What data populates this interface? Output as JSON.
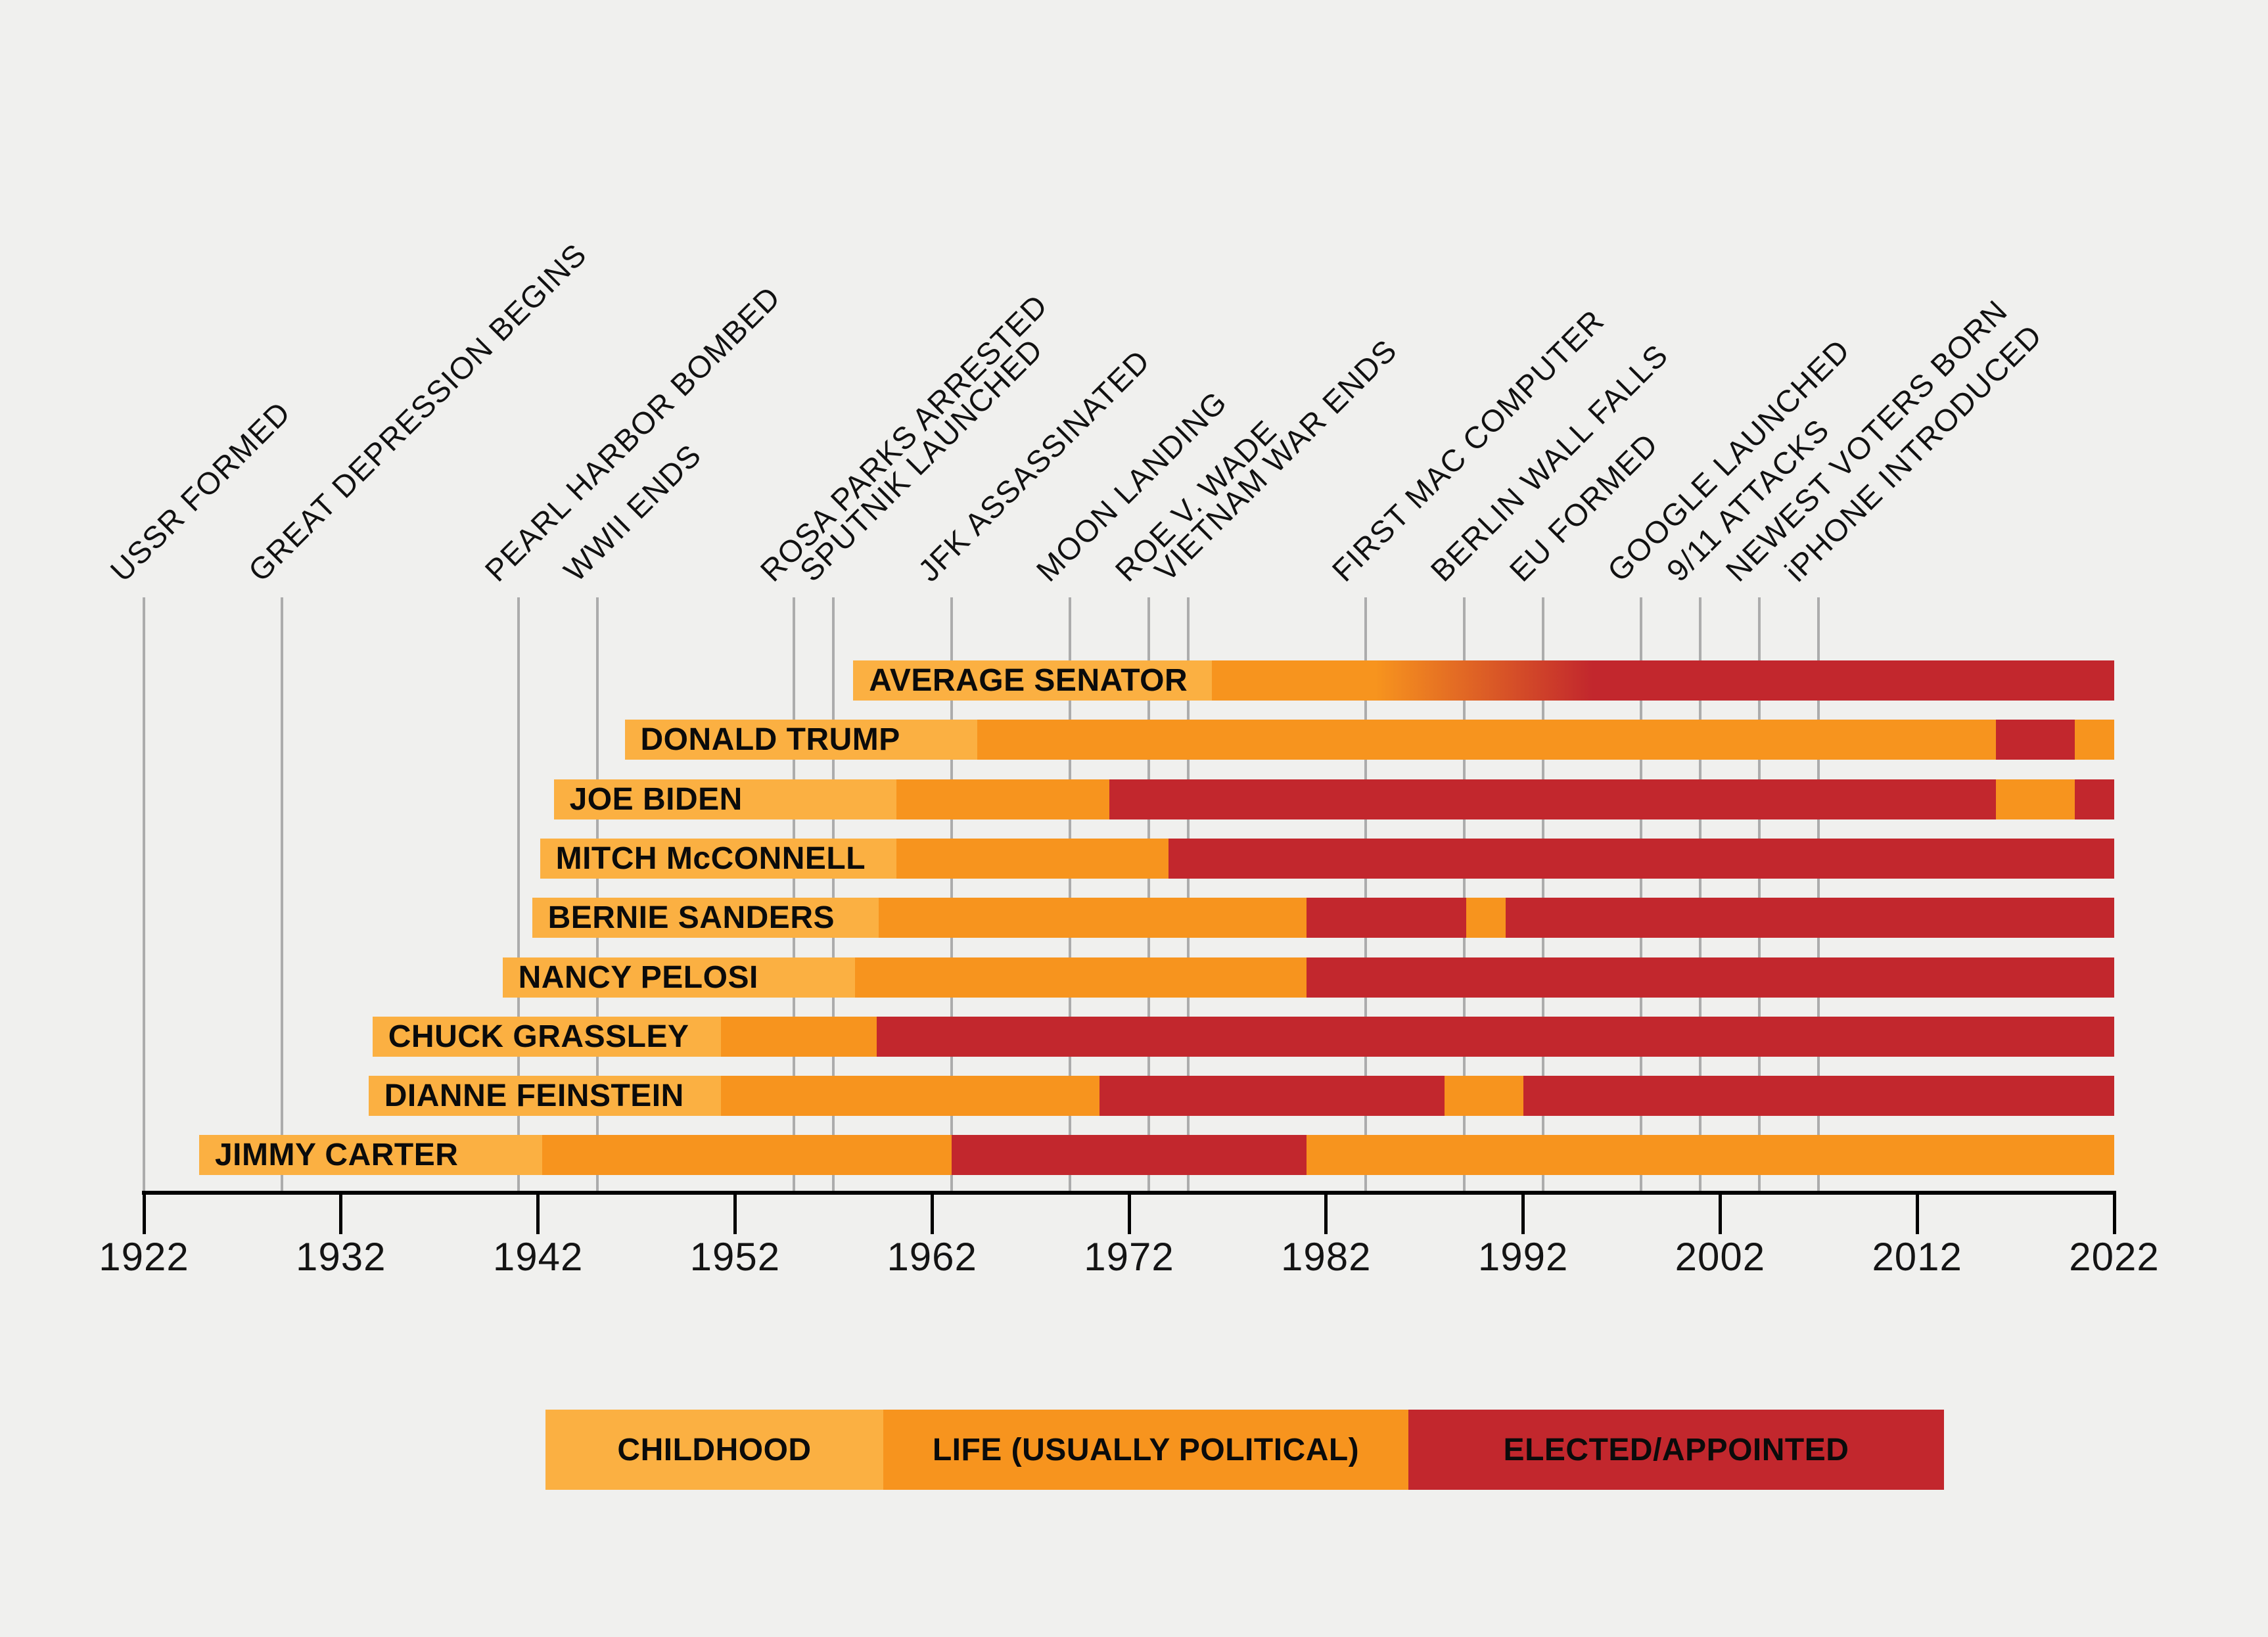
{
  "chart_data": {
    "type": "timeline-gantt",
    "description": "Lives of senior U.S. politicians vs historical events, 1922-2022",
    "x_axis": {
      "min": 1922,
      "max": 2022,
      "tick_interval": 10,
      "tick_labels": [
        "1922",
        "1932",
        "1942",
        "1952",
        "1962",
        "1972",
        "1982",
        "1992",
        "2002",
        "2012",
        "2022"
      ],
      "grid": true
    },
    "events": [
      {
        "label": "USSR FORMED",
        "year": 1922
      },
      {
        "label": "GREAT DEPRESSION BEGINS",
        "year": 1929
      },
      {
        "label": "PEARL HARBOR BOMBED",
        "year": 1941
      },
      {
        "label": "WWII ENDS",
        "year": 1945
      },
      {
        "label": "ROSA PARKS ARRESTED",
        "year": 1955
      },
      {
        "label": "SPUTNIK LAUNCHED",
        "year": 1957
      },
      {
        "label": "JFK ASSASSINATED",
        "year": 1963
      },
      {
        "label": "MOON LANDING",
        "year": 1969
      },
      {
        "label": "ROE V. WADE",
        "year": 1973
      },
      {
        "label": "VIETNAM WAR ENDS",
        "year": 1975
      },
      {
        "label": "FIRST MAC COMPUTER",
        "year": 1984
      },
      {
        "label": "BERLIN WALL FALLS",
        "year": 1989
      },
      {
        "label": "EU FORMED",
        "year": 1993
      },
      {
        "label": "GOOGLE LAUNCHED",
        "year": 1998
      },
      {
        "label": "9/11 ATTACKS",
        "year": 2001
      },
      {
        "label": "NEWEST VOTERS BORN",
        "year": 2004
      },
      {
        "label": "iPHONE INTRODUCED",
        "year": 2007
      }
    ],
    "rows": [
      {
        "name": "AVERAGE SENATOR",
        "segments": [
          {
            "phase": "childhood",
            "from": 1958.0,
            "to": 1976.2
          },
          {
            "phase": "life",
            "from": 1976.2,
            "to": 1984.5
          },
          {
            "phase": "transition",
            "from": 1984.5,
            "to": 1995.5
          },
          {
            "phase": "elected",
            "from": 1995.5,
            "to": 2022
          }
        ]
      },
      {
        "name": "DONALD TRUMP",
        "segments": [
          {
            "phase": "childhood",
            "from": 1946.4,
            "to": 1964.3
          },
          {
            "phase": "life",
            "from": 1964.3,
            "to": 2016.0
          },
          {
            "phase": "elected",
            "from": 2016.0,
            "to": 2020.0
          },
          {
            "phase": "life",
            "from": 2020.0,
            "to": 2022
          }
        ]
      },
      {
        "name": "JOE BIDEN",
        "segments": [
          {
            "phase": "childhood",
            "from": 1942.8,
            "to": 1960.2
          },
          {
            "phase": "life",
            "from": 1960.2,
            "to": 1971.0
          },
          {
            "phase": "elected",
            "from": 1971.0,
            "to": 2016.0
          },
          {
            "phase": "life",
            "from": 2016.0,
            "to": 2020.0
          },
          {
            "phase": "elected",
            "from": 2020.0,
            "to": 2022
          }
        ]
      },
      {
        "name": "MITCH McCONNELL",
        "segments": [
          {
            "phase": "childhood",
            "from": 1942.1,
            "to": 1960.2
          },
          {
            "phase": "life",
            "from": 1960.2,
            "to": 1974.0
          },
          {
            "phase": "elected",
            "from": 1974.0,
            "to": 2022
          }
        ]
      },
      {
        "name": "BERNIE SANDERS",
        "segments": [
          {
            "phase": "childhood",
            "from": 1941.7,
            "to": 1959.3
          },
          {
            "phase": "life",
            "from": 1959.3,
            "to": 1981.0
          },
          {
            "phase": "elected",
            "from": 1981.0,
            "to": 1989.1
          },
          {
            "phase": "life",
            "from": 1989.1,
            "to": 1991.1
          },
          {
            "phase": "elected",
            "from": 1991.1,
            "to": 2022
          }
        ]
      },
      {
        "name": "NANCY PELOSI",
        "segments": [
          {
            "phase": "childhood",
            "from": 1940.2,
            "to": 1958.1
          },
          {
            "phase": "life",
            "from": 1958.1,
            "to": 1981.0
          },
          {
            "phase": "elected",
            "from": 1981.0,
            "to": 2022
          }
        ]
      },
      {
        "name": "CHUCK GRASSLEY",
        "segments": [
          {
            "phase": "childhood",
            "from": 1933.6,
            "to": 1951.3
          },
          {
            "phase": "life",
            "from": 1951.3,
            "to": 1959.2
          },
          {
            "phase": "elected",
            "from": 1959.2,
            "to": 2022
          }
        ]
      },
      {
        "name": "DIANNE FEINSTEIN",
        "segments": [
          {
            "phase": "childhood",
            "from": 1933.4,
            "to": 1951.3
          },
          {
            "phase": "life",
            "from": 1951.3,
            "to": 1970.5
          },
          {
            "phase": "elected",
            "from": 1970.5,
            "to": 1988.0
          },
          {
            "phase": "life",
            "from": 1988.0,
            "to": 1992.0
          },
          {
            "phase": "elected",
            "from": 1992.0,
            "to": 2022
          }
        ]
      },
      {
        "name": "JIMMY CARTER",
        "segments": [
          {
            "phase": "childhood",
            "from": 1924.8,
            "to": 1942.2
          },
          {
            "phase": "life",
            "from": 1942.2,
            "to": 1963.0
          },
          {
            "phase": "elected",
            "from": 1963.0,
            "to": 1981.0
          },
          {
            "phase": "life",
            "from": 1981.0,
            "to": 2022
          }
        ]
      }
    ],
    "legend": {
      "position": "bottom-center",
      "items": [
        {
          "label": "CHILDHOOD",
          "phase": "childhood",
          "color": "#FBB042"
        },
        {
          "label": "LIFE (USUALLY POLITICAL)",
          "phase": "life",
          "color": "#F7941E"
        },
        {
          "label": "ELECTED/APPOINTED",
          "phase": "elected",
          "color": "#C2272D"
        }
      ]
    },
    "phase_colors": {
      "childhood": "#FBB042",
      "life": "#F7941E",
      "elected": "#C2272D"
    },
    "background_color": "#F0F0EE",
    "gridline_color": "#ACACAC",
    "text_color": "#111111"
  }
}
